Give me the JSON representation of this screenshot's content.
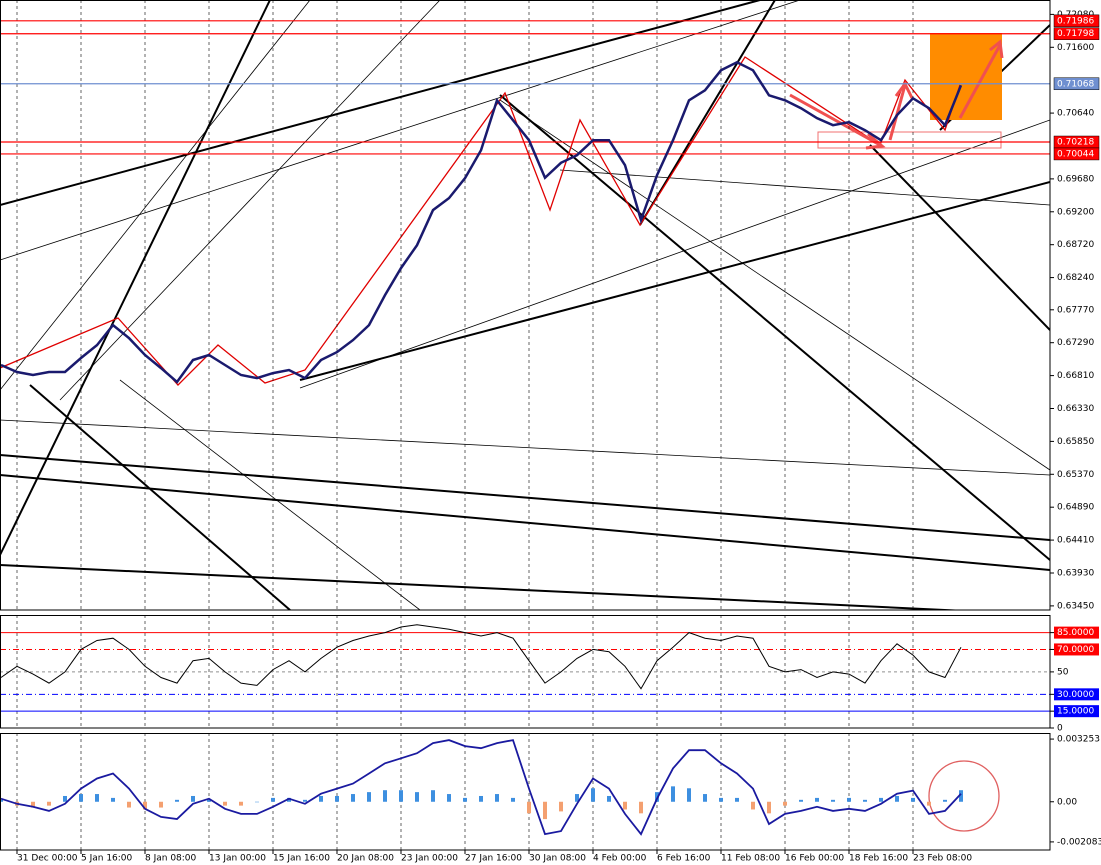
{
  "chart_data": [
    {
      "type": "line",
      "color": "#1a1a6e",
      "grid": true,
      "xlim": [
        0,
        65.5
      ],
      "ylim": [
        0.6339,
        0.7229
      ],
      "xticks": [
        {
          "value": 1,
          "label": "31 Dec 00:00"
        },
        {
          "value": 5,
          "label": "5 Jan 16:00"
        },
        {
          "value": 9,
          "label": "8 Jan 08:00"
        },
        {
          "value": 13,
          "label": "13 Jan 00:00"
        },
        {
          "value": 17,
          "label": "15 Jan 16:00"
        },
        {
          "value": 21,
          "label": "20 Jan 08:00"
        },
        {
          "value": 25,
          "label": "23 Jan 00:00"
        },
        {
          "value": 29,
          "label": "27 Jan 16:00"
        },
        {
          "value": 33,
          "label": "30 Jan 08:00"
        },
        {
          "value": 37,
          "label": "4 Feb 00:00"
        },
        {
          "value": 41,
          "label": "6 Feb 16:00"
        },
        {
          "value": 45,
          "label": "11 Feb 08:00"
        },
        {
          "value": 49,
          "label": "16 Feb 00:00"
        },
        {
          "value": 53,
          "label": "18 Feb 16:00"
        },
        {
          "value": 57,
          "label": "23 Feb 08:00"
        }
      ],
      "yticks": [
        {
          "value": 0.7208,
          "label": "0.72080"
        },
        {
          "value": 0.716,
          "label": "0.71600"
        },
        {
          "value": 0.7064,
          "label": "0.70640"
        },
        {
          "value": 0.6968,
          "label": "0.69680"
        },
        {
          "value": 0.692,
          "label": "0.69200"
        },
        {
          "value": 0.6872,
          "label": "0.68720"
        },
        {
          "value": 0.6824,
          "label": "0.68240"
        },
        {
          "value": 0.6777,
          "label": "0.67770"
        },
        {
          "value": 0.6729,
          "label": "0.67290"
        },
        {
          "value": 0.6681,
          "label": "0.66810"
        },
        {
          "value": 0.6633,
          "label": "0.66330"
        },
        {
          "value": 0.6585,
          "label": "0.65850"
        },
        {
          "value": 0.6537,
          "label": "0.65370"
        },
        {
          "value": 0.6489,
          "label": "0.64890"
        },
        {
          "value": 0.6441,
          "label": "0.64410"
        },
        {
          "value": 0.6393,
          "label": "0.63930"
        },
        {
          "value": 0.6345,
          "label": "0.63450"
        }
      ],
      "levels": [
        {
          "value": 0.71986,
          "color": "#ff0000"
        },
        {
          "value": 0.71798,
          "color": "#ff0000"
        },
        {
          "value": 0.71068,
          "color": "#6f8fd0"
        },
        {
          "value": 0.70218,
          "color": "#ff0000"
        },
        {
          "value": 0.70044,
          "color": "#ff0000"
        }
      ],
      "values": [
        0.66964,
        0.66862,
        0.66818,
        0.66862,
        0.66862,
        0.67066,
        0.67255,
        0.67547,
        0.67357,
        0.6711,
        0.6692,
        0.66716,
        0.67037,
        0.6711,
        0.66964,
        0.66818,
        0.66774,
        0.66847,
        0.66891,
        0.66774,
        0.67037,
        0.67153,
        0.67328,
        0.67547,
        0.67984,
        0.68378,
        0.68713,
        0.69224,
        0.69399,
        0.6969,
        0.70098,
        0.70827,
        0.70536,
        0.70244,
        0.69696,
        0.69915,
        0.70025,
        0.70244,
        0.70244,
        0.6988,
        0.69078,
        0.69734,
        0.70244,
        0.70827,
        0.70973,
        0.71265,
        0.71381,
        0.71265,
        0.709,
        0.70827,
        0.70711,
        0.70565,
        0.70463,
        0.70507,
        0.7039,
        0.70244,
        0.70609,
        0.70856,
        0.70711,
        0.70463,
        0.71046
      ]
    },
    {
      "type": "line",
      "color": "#000000",
      "ylim": [
        0,
        100.7
      ],
      "yticks": [
        {
          "value": 85,
          "label": "85.0000"
        },
        {
          "value": 70,
          "label": "70.0000"
        },
        50,
        {
          "value": 30,
          "label": "30.0000"
        },
        {
          "value": 15,
          "label": "15.0000"
        },
        0
      ],
      "level_colors": [
        "#ff0000",
        "#ff0000",
        "#909090",
        "#0000ff",
        "#0000ff",
        null
      ],
      "values": [
        45,
        55,
        48,
        40,
        50,
        70,
        78,
        80,
        70,
        55,
        45,
        40,
        60,
        62,
        50,
        40,
        38,
        52,
        60,
        50,
        62,
        72,
        78,
        82,
        85,
        90,
        92,
        90,
        88,
        85,
        82,
        85,
        80,
        60,
        40,
        50,
        62,
        70,
        68,
        55,
        35,
        60,
        72,
        85,
        80,
        78,
        82,
        80,
        55,
        50,
        52,
        45,
        50,
        48,
        40,
        60,
        75,
        65,
        50,
        45,
        72
      ]
    },
    {
      "type": "macd",
      "ylim": [
        -0.002503,
        0.003568
      ],
      "yticks": [
        0.003253,
        {
          "value": 0,
          "label": "0.00"
        },
        -0.002083
      ],
      "series": [
        {
          "type": "bar",
          "colors": [
            "#3d8fe0",
            "#f4a070"
          ],
          "values": [
            0.0001,
            -0.0002,
            -0.0003,
            -0.0002,
            0.0003,
            0.0004,
            0.0004,
            0.0002,
            -0.0003,
            -0.0004,
            -0.0003,
            0.0001,
            0.0003,
            0.0001,
            -0.0002,
            -0.0002,
            0,
            0.0002,
            0.0002,
            0.0001,
            0.0003,
            0.0003,
            0.0004,
            0.0005,
            0.0006,
            0.0006,
            0.0005,
            0.0006,
            0.0004,
            0.0002,
            0.0003,
            0.0004,
            0.0002,
            -0.0006,
            -0.0009,
            -0.0005,
            0.0004,
            0.0007,
            0.0003,
            -0.0004,
            -0.0006,
            0.0005,
            0.0008,
            0.0007,
            0.0004,
            0.0002,
            0.0002,
            -0.0004,
            -0.0006,
            -0.0002,
            0.0001,
            0.0002,
            0.0001,
            0.0002,
            0.0001,
            0.0002,
            0.0003,
            0.0002,
            -0.0002,
            0.0001,
            0.0006
          ]
        },
        {
          "type": "line",
          "color": "#1a1aa0",
          "values": [
            0.000157,
            -0.000105,
            -0.000262,
            -0.000472,
            -0.000105,
            0.000682,
            0.001207,
            0.001469,
            0.000682,
            -0.000367,
            -0.000787,
            -0.000892,
            -0.000105,
            0.000157,
            -0.000367,
            -0.00063,
            -0.00063,
            -0.000262,
            0.000157,
            -0.000105,
            0.00042,
            0.000682,
            0.000944,
            0.001469,
            0.001994,
            0.002256,
            0.002518,
            0.003043,
            0.003201,
            0.002886,
            0.002781,
            0.003043,
            0.003201,
            0.000682,
            -0.001679,
            -0.001522,
            -0.000105,
            0.001207,
            0.000682,
            -0.00063,
            -0.001679,
            0.000157,
            0.001732,
            0.002676,
            0.002676,
            0.001994,
            0.001469,
            0.000682,
            -0.001154,
            -0.00063,
            -0.000472,
            -0.000262,
            -0.000472,
            -0.000367,
            -0.000472,
            -0.000105,
            0.00042,
            0.000577,
            -0.00063,
            -0.000472,
            0.00042
          ]
        }
      ]
    }
  ]
}
